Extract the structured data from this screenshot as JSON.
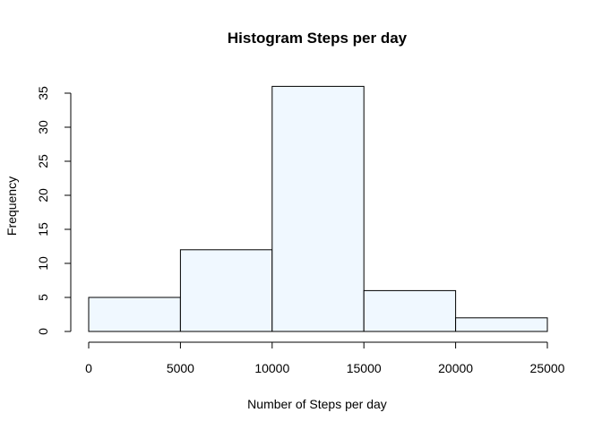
{
  "chart_data": {
    "type": "bar",
    "title": "Histogram Steps per day",
    "xlabel": "Number of Steps per day",
    "ylabel": "Frequency",
    "bins": [
      {
        "start": 0,
        "end": 5000,
        "count": 5
      },
      {
        "start": 5000,
        "end": 10000,
        "count": 12
      },
      {
        "start": 10000,
        "end": 15000,
        "count": 36
      },
      {
        "start": 15000,
        "end": 20000,
        "count": 6
      },
      {
        "start": 20000,
        "end": 25000,
        "count": 2
      }
    ],
    "xticks": [
      0,
      5000,
      10000,
      15000,
      20000,
      25000
    ],
    "yticks": [
      0,
      5,
      10,
      15,
      20,
      25,
      30,
      35
    ],
    "xlim": [
      0,
      25000
    ],
    "ylim": [
      0,
      36
    ],
    "bar_color": "#f0f8ff",
    "grid": false
  }
}
